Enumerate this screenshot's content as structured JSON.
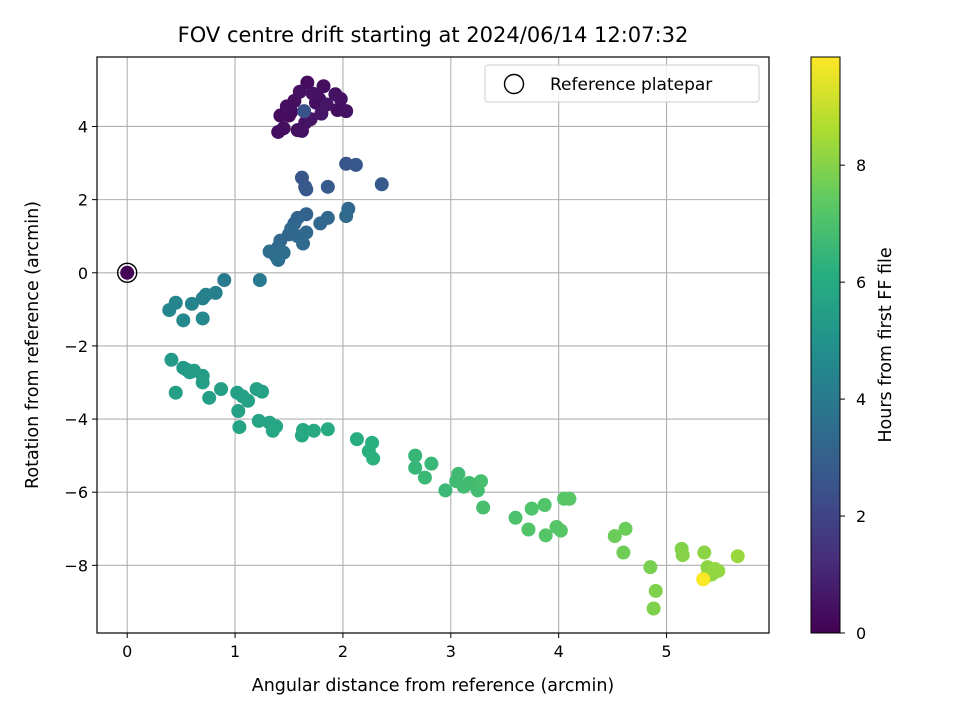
{
  "chart_data": {
    "type": "scatter",
    "title": "FOV centre drift starting at 2024/06/14 12:07:32",
    "xlabel": "Angular distance from reference (arcmin)",
    "ylabel": "Rotation from reference (arcmin)",
    "xlim": [
      -0.28,
      5.95
    ],
    "ylim": [
      -9.85,
      5.9
    ],
    "xticks": [
      0,
      1,
      2,
      3,
      4,
      5
    ],
    "yticks": [
      -8,
      -6,
      -4,
      -2,
      0,
      2,
      4
    ],
    "grid": true,
    "legend": {
      "placement": "top-right",
      "entries": [
        "Reference platepar"
      ]
    },
    "reference_point": {
      "x": 0,
      "y": 0,
      "label": "Reference platepar"
    },
    "colorbar": {
      "label": "Hours from first FF file",
      "range": [
        0,
        9.85
      ],
      "ticks": [
        0,
        2,
        4,
        6,
        8
      ],
      "colormap": "viridis"
    },
    "points": [
      {
        "x": 0,
        "y": 0,
        "h": 0.05
      },
      {
        "x": 1.42,
        "y": 4.3,
        "h": 0.3
      },
      {
        "x": 1.48,
        "y": 4.55,
        "h": 0.4
      },
      {
        "x": 1.55,
        "y": 4.7,
        "h": 0.35
      },
      {
        "x": 1.6,
        "y": 4.95,
        "h": 0.45
      },
      {
        "x": 1.67,
        "y": 5.2,
        "h": 0.3
      },
      {
        "x": 1.72,
        "y": 4.9,
        "h": 0.5
      },
      {
        "x": 1.78,
        "y": 4.75,
        "h": 0.4
      },
      {
        "x": 1.82,
        "y": 5.1,
        "h": 0.35
      },
      {
        "x": 1.85,
        "y": 4.6,
        "h": 0.55
      },
      {
        "x": 1.8,
        "y": 4.35,
        "h": 0.6
      },
      {
        "x": 1.93,
        "y": 4.88,
        "h": 0.45
      },
      {
        "x": 1.98,
        "y": 4.75,
        "h": 0.5
      },
      {
        "x": 1.95,
        "y": 4.45,
        "h": 0.4
      },
      {
        "x": 2.03,
        "y": 4.42,
        "h": 0.45
      },
      {
        "x": 1.5,
        "y": 4.3,
        "h": 0.3
      },
      {
        "x": 1.45,
        "y": 3.95,
        "h": 0.35
      },
      {
        "x": 1.4,
        "y": 3.85,
        "h": 0.4
      },
      {
        "x": 1.58,
        "y": 3.9,
        "h": 0.35
      },
      {
        "x": 1.62,
        "y": 3.88,
        "h": 0.45
      },
      {
        "x": 1.65,
        "y": 4.1,
        "h": 0.5
      },
      {
        "x": 1.7,
        "y": 4.2,
        "h": 0.55
      },
      {
        "x": 1.75,
        "y": 4.65,
        "h": 0.4
      },
      {
        "x": 1.52,
        "y": 4.4,
        "h": 0.3
      },
      {
        "x": 1.64,
        "y": 4.42,
        "h": 2.5
      },
      {
        "x": 2.03,
        "y": 2.98,
        "h": 2.6
      },
      {
        "x": 2.12,
        "y": 2.95,
        "h": 2.7
      },
      {
        "x": 2.36,
        "y": 2.42,
        "h": 2.8
      },
      {
        "x": 1.62,
        "y": 2.6,
        "h": 2.6
      },
      {
        "x": 1.65,
        "y": 2.35,
        "h": 2.7
      },
      {
        "x": 1.66,
        "y": 2.28,
        "h": 2.75
      },
      {
        "x": 1.86,
        "y": 2.35,
        "h": 2.8
      },
      {
        "x": 1.66,
        "y": 1.6,
        "h": 3.1
      },
      {
        "x": 1.58,
        "y": 1.5,
        "h": 3.2
      },
      {
        "x": 1.55,
        "y": 1.35,
        "h": 3.2
      },
      {
        "x": 1.52,
        "y": 1.2,
        "h": 3.3
      },
      {
        "x": 1.5,
        "y": 1.05,
        "h": 3.25
      },
      {
        "x": 1.58,
        "y": 1.0,
        "h": 3.3
      },
      {
        "x": 1.66,
        "y": 1.1,
        "h": 3.35
      },
      {
        "x": 1.63,
        "y": 0.8,
        "h": 3.4
      },
      {
        "x": 1.42,
        "y": 0.88,
        "h": 3.3
      },
      {
        "x": 1.4,
        "y": 0.7,
        "h": 3.4
      },
      {
        "x": 1.32,
        "y": 0.58,
        "h": 3.5
      },
      {
        "x": 1.38,
        "y": 0.45,
        "h": 3.5
      },
      {
        "x": 1.4,
        "y": 0.35,
        "h": 3.55
      },
      {
        "x": 1.45,
        "y": 0.55,
        "h": 3.5
      },
      {
        "x": 1.79,
        "y": 1.35,
        "h": 3.3
      },
      {
        "x": 1.86,
        "y": 1.5,
        "h": 3.35
      },
      {
        "x": 2.03,
        "y": 1.55,
        "h": 3.4
      },
      {
        "x": 2.05,
        "y": 1.75,
        "h": 3.35
      },
      {
        "x": 0.9,
        "y": -0.2,
        "h": 4.0
      },
      {
        "x": 1.23,
        "y": -0.2,
        "h": 4.0
      },
      {
        "x": 0.82,
        "y": -0.55,
        "h": 4.2
      },
      {
        "x": 0.73,
        "y": -0.6,
        "h": 4.3
      },
      {
        "x": 0.7,
        "y": -0.7,
        "h": 4.3
      },
      {
        "x": 0.6,
        "y": -0.85,
        "h": 4.4
      },
      {
        "x": 0.45,
        "y": -0.82,
        "h": 4.5
      },
      {
        "x": 0.39,
        "y": -1.02,
        "h": 4.5
      },
      {
        "x": 0.52,
        "y": -1.3,
        "h": 4.6
      },
      {
        "x": 0.7,
        "y": -1.25,
        "h": 4.6
      },
      {
        "x": 0.41,
        "y": -2.38,
        "h": 5.3
      },
      {
        "x": 0.52,
        "y": -2.6,
        "h": 5.3
      },
      {
        "x": 0.58,
        "y": -2.72,
        "h": 5.4
      },
      {
        "x": 0.55,
        "y": -2.65,
        "h": 5.3
      },
      {
        "x": 0.62,
        "y": -2.68,
        "h": 5.4
      },
      {
        "x": 0.7,
        "y": -2.82,
        "h": 5.45
      },
      {
        "x": 0.7,
        "y": -3.0,
        "h": 5.5
      },
      {
        "x": 0.45,
        "y": -3.28,
        "h": 5.5
      },
      {
        "x": 0.76,
        "y": -3.42,
        "h": 5.5
      },
      {
        "x": 0.87,
        "y": -3.18,
        "h": 5.5
      },
      {
        "x": 1.02,
        "y": -3.28,
        "h": 5.55
      },
      {
        "x": 1.07,
        "y": -3.38,
        "h": 5.55
      },
      {
        "x": 1.12,
        "y": -3.5,
        "h": 5.6
      },
      {
        "x": 1.2,
        "y": -3.18,
        "h": 5.55
      },
      {
        "x": 1.25,
        "y": -3.25,
        "h": 5.6
      },
      {
        "x": 1.03,
        "y": -3.78,
        "h": 5.6
      },
      {
        "x": 1.04,
        "y": -4.22,
        "h": 5.7
      },
      {
        "x": 1.22,
        "y": -4.05,
        "h": 5.7
      },
      {
        "x": 1.32,
        "y": -4.1,
        "h": 5.75
      },
      {
        "x": 1.35,
        "y": -4.32,
        "h": 5.8
      },
      {
        "x": 1.38,
        "y": -4.2,
        "h": 5.8
      },
      {
        "x": 1.62,
        "y": -4.45,
        "h": 5.9
      },
      {
        "x": 1.63,
        "y": -4.3,
        "h": 5.9
      },
      {
        "x": 1.73,
        "y": -4.32,
        "h": 5.95
      },
      {
        "x": 1.86,
        "y": -4.28,
        "h": 6.0
      },
      {
        "x": 2.13,
        "y": -4.55,
        "h": 6.1
      },
      {
        "x": 2.24,
        "y": -4.88,
        "h": 6.2
      },
      {
        "x": 2.27,
        "y": -4.65,
        "h": 6.2
      },
      {
        "x": 2.28,
        "y": -5.08,
        "h": 6.25
      },
      {
        "x": 2.67,
        "y": -5.0,
        "h": 6.5
      },
      {
        "x": 2.67,
        "y": -5.33,
        "h": 6.5
      },
      {
        "x": 2.82,
        "y": -5.22,
        "h": 6.55
      },
      {
        "x": 2.76,
        "y": -5.6,
        "h": 6.6
      },
      {
        "x": 2.95,
        "y": -5.95,
        "h": 6.6
      },
      {
        "x": 3.05,
        "y": -5.7,
        "h": 6.7
      },
      {
        "x": 3.07,
        "y": -5.5,
        "h": 6.7
      },
      {
        "x": 3.12,
        "y": -5.85,
        "h": 6.75
      },
      {
        "x": 3.17,
        "y": -5.75,
        "h": 6.75
      },
      {
        "x": 3.22,
        "y": -5.8,
        "h": 6.8
      },
      {
        "x": 3.25,
        "y": -5.95,
        "h": 6.8
      },
      {
        "x": 3.28,
        "y": -5.7,
        "h": 6.85
      },
      {
        "x": 3.3,
        "y": -6.42,
        "h": 6.9
      },
      {
        "x": 3.6,
        "y": -6.7,
        "h": 7.0
      },
      {
        "x": 3.72,
        "y": -7.02,
        "h": 7.1
      },
      {
        "x": 3.75,
        "y": -6.45,
        "h": 7.05
      },
      {
        "x": 3.87,
        "y": -6.35,
        "h": 7.1
      },
      {
        "x": 3.88,
        "y": -7.18,
        "h": 7.15
      },
      {
        "x": 3.98,
        "y": -6.95,
        "h": 7.2
      },
      {
        "x": 4.02,
        "y": -7.05,
        "h": 7.2
      },
      {
        "x": 4.05,
        "y": -6.18,
        "h": 7.2
      },
      {
        "x": 4.1,
        "y": -6.18,
        "h": 7.25
      },
      {
        "x": 4.52,
        "y": -7.2,
        "h": 7.6
      },
      {
        "x": 4.62,
        "y": -7.0,
        "h": 7.6
      },
      {
        "x": 4.6,
        "y": -7.65,
        "h": 7.65
      },
      {
        "x": 4.85,
        "y": -8.05,
        "h": 7.8
      },
      {
        "x": 4.9,
        "y": -8.7,
        "h": 7.9
      },
      {
        "x": 4.88,
        "y": -9.18,
        "h": 7.9
      },
      {
        "x": 5.14,
        "y": -7.55,
        "h": 7.95
      },
      {
        "x": 5.15,
        "y": -7.72,
        "h": 8.0
      },
      {
        "x": 5.35,
        "y": -7.65,
        "h": 8.1
      },
      {
        "x": 5.38,
        "y": -8.05,
        "h": 8.1
      },
      {
        "x": 5.42,
        "y": -8.25,
        "h": 8.15
      },
      {
        "x": 5.45,
        "y": -8.1,
        "h": 8.2
      },
      {
        "x": 5.48,
        "y": -8.15,
        "h": 8.2
      },
      {
        "x": 5.37,
        "y": -8.3,
        "h": 8.2
      },
      {
        "x": 5.66,
        "y": -7.75,
        "h": 8.3
      },
      {
        "x": 5.34,
        "y": -8.38,
        "h": 9.8
      }
    ]
  }
}
